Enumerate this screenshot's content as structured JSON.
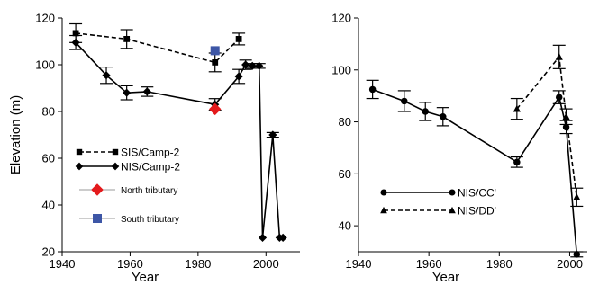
{
  "chart_data": [
    {
      "type": "line",
      "xlabel": "Year",
      "ylabel": "Elevation (m)",
      "xlim": [
        1940,
        2010
      ],
      "ylim": [
        20,
        120
      ],
      "xticks": [
        1940,
        1960,
        1980,
        2000
      ],
      "yticks": [
        20,
        40,
        60,
        80,
        100,
        120
      ],
      "grid": false,
      "legend_position": "left-middle",
      "series": [
        {
          "name": "SIS/Camp-2",
          "line_style": "dashed",
          "marker": "square",
          "color": "#000000",
          "x": [
            1944,
            1959,
            1985,
            1992
          ],
          "y": [
            113.5,
            111,
            101,
            111
          ],
          "error": [
            4,
            4,
            4,
            2.5
          ]
        },
        {
          "name": "NIS/Camp-2",
          "line_style": "solid",
          "marker": "diamond",
          "color": "#000000",
          "x": [
            1944,
            1953,
            1959,
            1965,
            1985,
            1992,
            1994,
            1996,
            1998,
            1999,
            2002,
            2004,
            2005
          ],
          "y": [
            109.5,
            95.5,
            88,
            88.5,
            83,
            95,
            100,
            99.5,
            99.5,
            26,
            70,
            26,
            26
          ],
          "error": [
            3,
            3.5,
            3,
            2,
            2.5,
            3,
            2,
            1,
            1,
            0,
            1,
            0,
            0
          ]
        },
        {
          "name": "North tributary",
          "line_style": "none",
          "marker": "diamond",
          "color": "#e41a1c",
          "x": [
            1985
          ],
          "y": [
            81
          ],
          "error": []
        },
        {
          "name": "South tributary",
          "line_style": "none",
          "marker": "square",
          "color": "#3d56a6",
          "x": [
            1985
          ],
          "y": [
            106
          ],
          "error": []
        }
      ]
    },
    {
      "type": "line",
      "xlabel": "Year",
      "ylabel": "",
      "xlim": [
        1940,
        2005
      ],
      "ylim": [
        30,
        120
      ],
      "xticks": [
        1940,
        1960,
        1980,
        2000
      ],
      "yticks": [
        40,
        60,
        80,
        100,
        120
      ],
      "grid": false,
      "legend_position": "lower-left",
      "series": [
        {
          "name": "NIS/CC'",
          "line_style": "solid",
          "marker": "circle",
          "color": "#000000",
          "x": [
            1944,
            1953,
            1959,
            1964,
            1985,
            1997,
            1999,
            2002
          ],
          "y": [
            92.5,
            88,
            84,
            82,
            64.5,
            89.5,
            78,
            29
          ],
          "error": [
            3.5,
            4,
            3.5,
            3.5,
            2,
            2.5,
            2.5,
            1
          ]
        },
        {
          "name": "NIS/DD'",
          "line_style": "dashed",
          "marker": "triangle",
          "color": "#000000",
          "x": [
            1985,
            1997,
            1999,
            2002
          ],
          "y": [
            85,
            105,
            82,
            51
          ],
          "error": [
            4,
            4.5,
            3,
            3.5
          ]
        }
      ]
    }
  ]
}
